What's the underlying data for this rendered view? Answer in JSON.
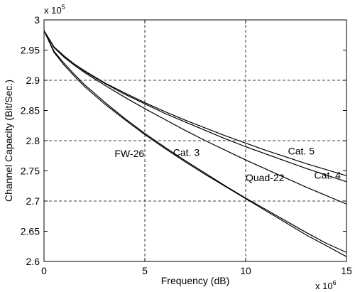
{
  "chart_data": {
    "type": "line",
    "title": "",
    "xlabel": "Frequency (dB)",
    "ylabel": "Channel Capacity (Bit/Sec.)",
    "x_scale_label": "x 10",
    "x_scale_exp": "6",
    "y_scale_label": "x 10",
    "y_scale_exp": "5",
    "xlim": [
      0,
      15
    ],
    "ylim": [
      2.6,
      3.0
    ],
    "xticks": [
      0,
      5,
      10,
      15
    ],
    "yticks": [
      2.6,
      2.65,
      2.7,
      2.75,
      2.8,
      2.85,
      2.9,
      2.95,
      3
    ],
    "xtick_labels": [
      "0",
      "5",
      "10",
      "15"
    ],
    "ytick_labels": [
      "2.6",
      "2.65",
      "2.7",
      "2.75",
      "2.8",
      "2.85",
      "2.9",
      "2.95",
      "3"
    ],
    "grid": true,
    "grid_style": "dashed",
    "line_color": "#000000",
    "x": [
      0,
      0.5,
      1,
      1.5,
      2,
      3,
      4,
      5,
      6,
      7,
      8,
      9,
      10,
      11,
      12,
      13,
      14,
      15
    ],
    "series": [
      {
        "name": "Cat. 5",
        "values": [
          2.982,
          2.955,
          2.94,
          2.927,
          2.916,
          2.896,
          2.879,
          2.863,
          2.848,
          2.834,
          2.821,
          2.808,
          2.796,
          2.784,
          2.773,
          2.762,
          2.752,
          2.742
        ]
      },
      {
        "name": "Cat. 4",
        "values": [
          2.982,
          2.955,
          2.94,
          2.927,
          2.915,
          2.895,
          2.877,
          2.861,
          2.845,
          2.831,
          2.817,
          2.803,
          2.79,
          2.778,
          2.766,
          2.754,
          2.743,
          2.732
        ]
      },
      {
        "name": "Cat. 3",
        "values": [
          2.982,
          2.954,
          2.938,
          2.925,
          2.913,
          2.892,
          2.872,
          2.853,
          2.835,
          2.817,
          2.8,
          2.784,
          2.768,
          2.753,
          2.738,
          2.723,
          2.709,
          2.695
        ]
      },
      {
        "name": "FW-26",
        "values": [
          2.982,
          2.948,
          2.928,
          2.91,
          2.893,
          2.864,
          2.837,
          2.812,
          2.789,
          2.767,
          2.746,
          2.725,
          2.705,
          2.686,
          2.667,
          2.648,
          2.63,
          2.615
        ]
      },
      {
        "name": "Quad-22",
        "values": [
          2.982,
          2.946,
          2.925,
          2.907,
          2.89,
          2.861,
          2.835,
          2.81,
          2.787,
          2.765,
          2.744,
          2.724,
          2.704,
          2.684,
          2.664,
          2.644,
          2.626,
          2.608
        ]
      }
    ],
    "annotations": [
      {
        "text": "Cat. 5",
        "x": 12.1,
        "y": 2.777
      },
      {
        "text": "Cat. 4",
        "x": 13.4,
        "y": 2.737
      },
      {
        "text": "Cat. 3",
        "x": 6.4,
        "y": 2.775
      },
      {
        "text": "FW-26",
        "x": 3.5,
        "y": 2.773
      },
      {
        "text": "Quad-22",
        "x": 10.0,
        "y": 2.733
      }
    ]
  }
}
